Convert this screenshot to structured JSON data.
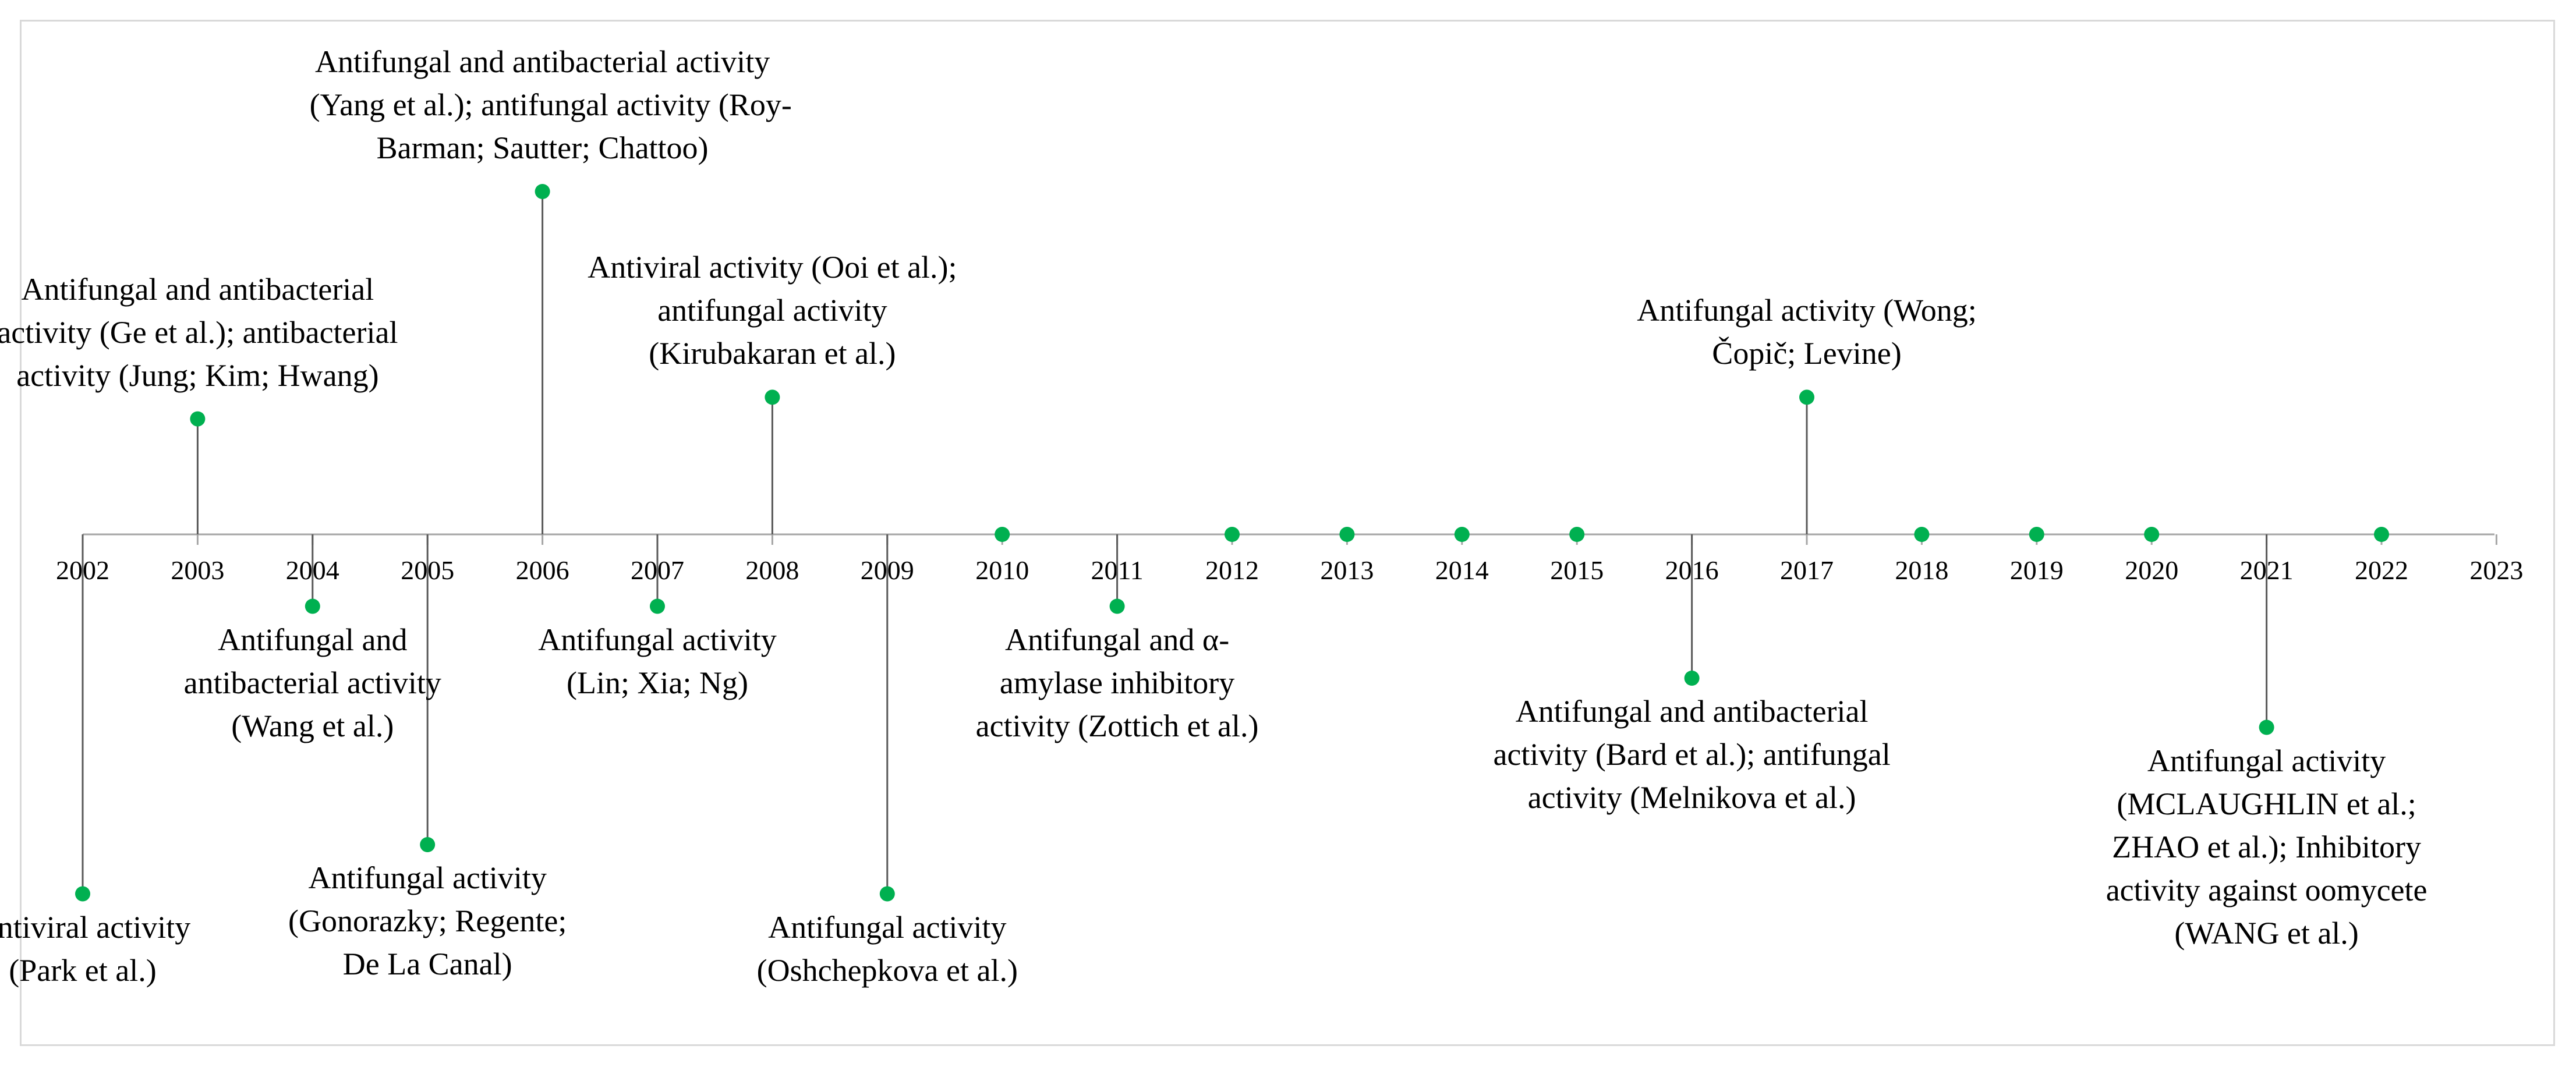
{
  "axis": {
    "years": [
      "2002",
      "2003",
      "2004",
      "2005",
      "2006",
      "2007",
      "2008",
      "2009",
      "2010",
      "2011",
      "2012",
      "2013",
      "2014",
      "2015",
      "2016",
      "2017",
      "2018",
      "2019",
      "2020",
      "2021",
      "2022",
      "2023"
    ],
    "line_color": "#a6a6a6",
    "stem_color": "#595959"
  },
  "marker_color": "#00b050",
  "events": [
    {
      "year": "2002",
      "direction": "below",
      "level": 0.95,
      "lines": [
        "Antiviral activity",
        "(Park et al.)"
      ]
    },
    {
      "year": "2003",
      "direction": "above",
      "level": 0.32,
      "lines": [
        "Antifungal and antibacterial",
        "activity (Ge et al.); antibacterial",
        "activity (Jung; Kim; Hwang)"
      ]
    },
    {
      "year": "2004",
      "direction": "below",
      "level": 0.19,
      "lines": [
        "Antifungal and",
        "antibacterial activity",
        "(Wang et al.)"
      ]
    },
    {
      "year": "2005",
      "direction": "below",
      "level": 0.82,
      "lines": [
        "Antifungal activity",
        "(Gonorazky; Regente;",
        "De La Canal)"
      ]
    },
    {
      "year": "2006",
      "direction": "above",
      "level": 0.95,
      "lines": [
        "Antifungal and antibacterial activity",
        "(Yang et al.); antifungal activity (Roy-",
        "Barman; Sautter; Chattoo)"
      ]
    },
    {
      "year": "2007",
      "direction": "below",
      "level": 0.19,
      "lines": [
        "Antifungal activity",
        "(Lin; Xia; Ng)"
      ]
    },
    {
      "year": "2008",
      "direction": "above",
      "level": 0.38,
      "lines": [
        "Antiviral activity (Ooi et al.);",
        "antifungal activity",
        "(Kirubakaran et al.)"
      ]
    },
    {
      "year": "2009",
      "direction": "below",
      "level": 0.95,
      "lines": [
        "Antifungal activity",
        "(Oshchepkova et al.)"
      ]
    },
    {
      "year": "2010",
      "direction": "on",
      "level": 0,
      "lines": []
    },
    {
      "year": "2011",
      "direction": "below",
      "level": 0.19,
      "lines": [
        "Antifungal and α-",
        "amylase inhibitory",
        "activity (Zottich et al.)"
      ]
    },
    {
      "year": "2012",
      "direction": "on",
      "level": 0,
      "lines": []
    },
    {
      "year": "2013",
      "direction": "on",
      "level": 0,
      "lines": []
    },
    {
      "year": "2014",
      "direction": "on",
      "level": 0,
      "lines": []
    },
    {
      "year": "2015",
      "direction": "on",
      "level": 0,
      "lines": []
    },
    {
      "year": "2016",
      "direction": "below",
      "level": 0.38,
      "lines": [
        "Antifungal and antibacterial",
        "activity (Bard et al.); antifungal",
        "activity (Melnikova et al.)"
      ]
    },
    {
      "year": "2017",
      "direction": "above",
      "level": 0.38,
      "lines": [
        "Antifungal activity (Wong;",
        "Čopič; Levine)"
      ]
    },
    {
      "year": "2018",
      "direction": "on",
      "level": 0,
      "lines": []
    },
    {
      "year": "2019",
      "direction": "on",
      "level": 0,
      "lines": []
    },
    {
      "year": "2020",
      "direction": "on",
      "level": 0,
      "lines": []
    },
    {
      "year": "2021",
      "direction": "below",
      "level": 0.51,
      "lines": [
        "Antifungal activity",
        "(MCLAUGHLIN et al.;",
        "ZHAO et al.);  Inhibitory",
        "activity against oomycete",
        "(WANG et al.)"
      ]
    },
    {
      "year": "2022",
      "direction": "on",
      "level": 0,
      "lines": []
    }
  ]
}
